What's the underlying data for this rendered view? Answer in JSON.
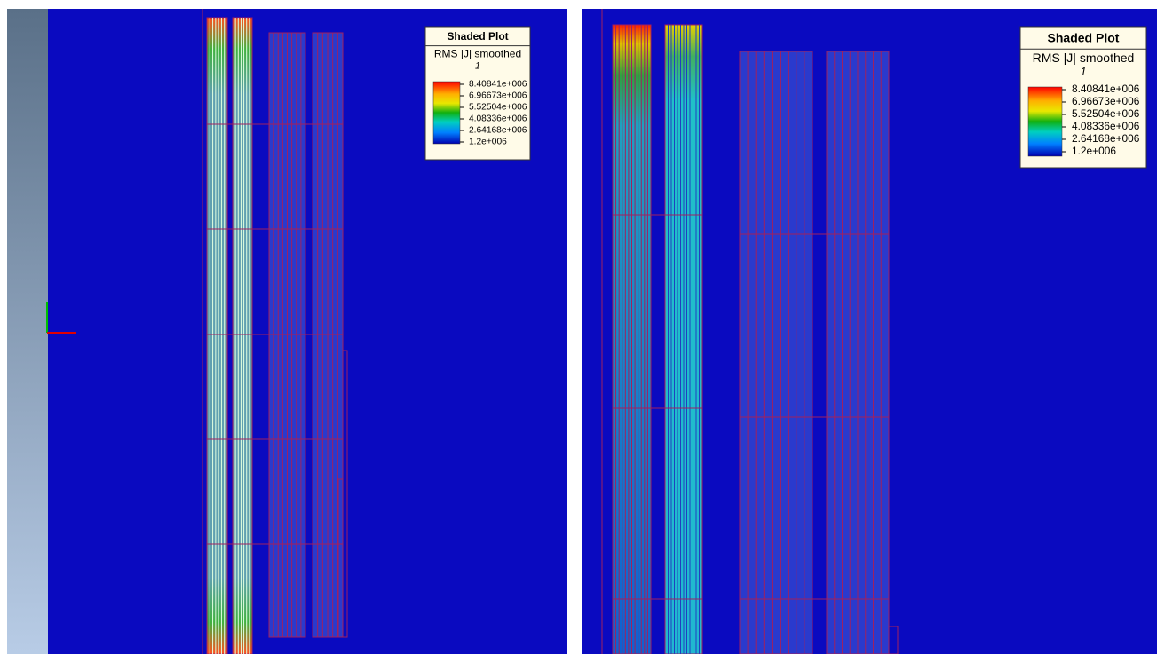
{
  "panels": [
    {
      "legend": {
        "title": "Shaded Plot",
        "quantity": "RMS |J| smoothed",
        "step": "1",
        "labels": [
          "8.40841e+006",
          "6.96673e+006",
          "5.52504e+006",
          "4.08336e+006",
          "2.64168e+006",
          "1.2e+006"
        ]
      }
    },
    {
      "legend": {
        "title": "Shaded Plot",
        "quantity": "RMS |J| smoothed",
        "step": "1",
        "labels": [
          "8.40841e+006",
          "6.96673e+006",
          "5.52504e+006",
          "4.08336e+006",
          "2.64168e+006",
          "1.2e+006"
        ]
      }
    }
  ]
}
